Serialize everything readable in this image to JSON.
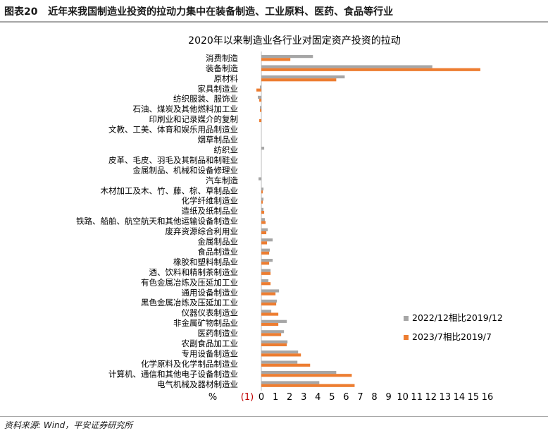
{
  "header": {
    "label": "图表20",
    "text": "近年来我国制造业投资的拉动力集中在装备制造、工业原料、医药、食品等行业"
  },
  "source": "资料来源: Wind，平安证券研究所",
  "colors": {
    "series_1": "#a6a6a6",
    "series_2": "#ed7d31",
    "axis": "#bfbfbf"
  },
  "chart_data": {
    "type": "bar",
    "orientation": "horizontal",
    "title": "2020年以来制造业各行业对固定资产投资的拉动",
    "xlabel": "%",
    "xlim": [
      -1,
      16
    ],
    "xticks": [
      -1,
      0,
      1,
      2,
      3,
      4,
      5,
      6,
      7,
      8,
      9,
      10,
      11,
      12,
      13,
      14,
      15,
      16
    ],
    "xtick_labels": [
      "(1)",
      "0",
      "1",
      "2",
      "3",
      "4",
      "5",
      "6",
      "7",
      "8",
      "9",
      "10",
      "11",
      "12",
      "13",
      "14",
      "15",
      "16"
    ],
    "legend_position": "right",
    "categories": [
      "消费制造",
      "装备制造",
      "原材料",
      "家具制造业",
      "纺织服装、服饰业",
      "石油、煤炭及其他燃料加工业",
      "印刷业和记录媒介的复制",
      "文教、工美、体育和娱乐用品制造业",
      "烟草制品业",
      "纺织业",
      "皮革、毛皮、羽毛及其制品和制鞋业",
      "金属制品、机械和设备修理业",
      "汽车制造",
      "木材加工及木、竹、藤、棕、草制品业",
      "化学纤维制造业",
      "造纸及纸制品业",
      "铁路、船舶、航空航天和其他运输设备制造业",
      "废弃资源综合利用业",
      "金属制品业",
      "食品制造业",
      "橡胶和塑料制品业",
      "酒、饮料和精制茶制造业",
      "有色金属冶炼及压延加工业",
      "通用设备制造业",
      "黑色金属冶炼及压延加工业",
      "仪器仪表制造业",
      "非金属矿物制品业",
      "医药制造业",
      "农副食品加工业",
      "专用设备制造业",
      "化学原料及化学制品制造业",
      "计算机、通信和其他电子设备制造业",
      "电气机械及器材制造业"
    ],
    "series": [
      {
        "name": "2022/12相比2019/12",
        "values": [
          3.65,
          12.1,
          5.9,
          -0.1,
          -0.25,
          -0.1,
          0,
          0,
          0,
          0.2,
          0,
          0,
          -0.2,
          0.15,
          0.15,
          0.15,
          0.25,
          0.45,
          0.8,
          0.6,
          0.8,
          0.65,
          0.5,
          1.25,
          1.1,
          0.7,
          1.8,
          1.6,
          1.85,
          2.6,
          2.55,
          5.3,
          4.1
        ]
      },
      {
        "name": "2023/7相比2019/7",
        "values": [
          2.05,
          15.5,
          5.3,
          -0.35,
          -0.15,
          -0.1,
          -0.15,
          0,
          0,
          0,
          0,
          0,
          0,
          0.1,
          0.1,
          0.2,
          0.3,
          0.35,
          0.4,
          0.55,
          0.55,
          0.65,
          0.65,
          1.0,
          1.05,
          1.2,
          1.2,
          1.4,
          1.8,
          2.8,
          3.45,
          6.4,
          6.6
        ]
      }
    ]
  }
}
